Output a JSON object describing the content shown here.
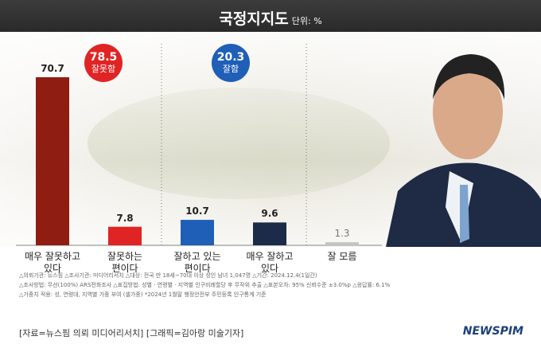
{
  "chart_data": {
    "type": "bar",
    "title": "국정지지도",
    "subtitle": "단위: %",
    "categories": [
      "매우 잘못하고\n있다",
      "잘못하는\n편이다",
      "잘하고 있는\n편이다",
      "매우 잘하고\n있다",
      "잘 모름"
    ],
    "values": [
      70.7,
      7.8,
      10.7,
      9.6,
      1.3
    ],
    "colors": [
      "#8f1d12",
      "#e02424",
      "#1f5fb8",
      "#1b2b48",
      "#c4c4c4"
    ],
    "annotations": [
      {
        "value": 78.5,
        "label": "잘못함",
        "color": "#e02424"
      },
      {
        "value": 20.3,
        "label": "잘함",
        "color": "#1f5fb8"
      }
    ],
    "notes": [
      "△의뢰기관: 뉴스핌 △조사기관: 미디어리서치 △대상: 전국 만 18세~70대 이상 성인 남녀 1,047명 △기간: 2024.12.4(1일간)",
      "△조사방법: 무선(100%) ARS전화조사 △표집방법: 성별 · 연령별 · 지역별 인구비례할당 후 무작위 추출 △표본오차: 95% 신뢰수준 ±3.0%p △응답률: 6.1%",
      "△가중치 적용: 성, 연령대, 지역별 가중 부여 (셀가중) *2024년 1월말 행정안전부 주민등록 인구통계 기준"
    ],
    "source": "[자료=뉴스핌 의뢰 미디어리서치] [그래픽=김아랑 미술기자]",
    "logo": "NEWSPIM"
  }
}
